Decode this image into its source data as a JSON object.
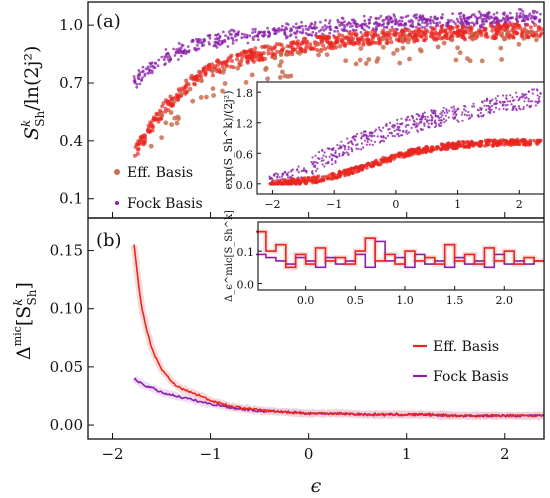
{
  "colors": {
    "eff": "#e8261f",
    "eff_dot": "#c96f4f",
    "fock": "#8a1fa8",
    "fock_light": "#a24fc0",
    "axis": "#111111"
  },
  "chart_data": [
    {
      "panel_label": "(a)",
      "type": "scatter",
      "xlim": [
        -2.25,
        2.4
      ],
      "ylim": [
        0.0,
        1.12
      ],
      "yticks": [
        0.1,
        0.4,
        0.7,
        1.0
      ],
      "ytick_labels": [
        "0.1",
        "0.4",
        "0.7",
        "1.0"
      ],
      "ylabel_text": "S",
      "ylabel_sup": "k",
      "ylabel_sub": "Sh",
      "ylabel_tail": "/ln(2j²)",
      "legend": [
        "Eff. Basis",
        "Fock Basis"
      ],
      "series": [
        {
          "name": "Eff. Basis",
          "x": [
            -1.78,
            -1.7,
            -1.6,
            -1.5,
            -1.4,
            -1.3,
            -1.2,
            -1.1,
            -1.0,
            -0.8,
            -0.6,
            -0.4,
            -0.2,
            0.0,
            0.2,
            0.5,
            0.8,
            1.1,
            1.4,
            1.7,
            2.0,
            2.3
          ],
          "values": [
            0.33,
            0.4,
            0.48,
            0.55,
            0.61,
            0.66,
            0.7,
            0.74,
            0.77,
            0.81,
            0.84,
            0.86,
            0.88,
            0.9,
            0.91,
            0.93,
            0.94,
            0.95,
            0.96,
            0.96,
            0.97,
            0.97
          ]
        },
        {
          "name": "Fock Basis",
          "x": [
            -1.78,
            -1.7,
            -1.6,
            -1.5,
            -1.4,
            -1.3,
            -1.2,
            -1.1,
            -1.0,
            -0.8,
            -0.6,
            -0.4,
            -0.2,
            0.0,
            0.2,
            0.5,
            0.8,
            1.1,
            1.4,
            1.7,
            2.0,
            2.3
          ],
          "values": [
            0.72,
            0.76,
            0.8,
            0.84,
            0.87,
            0.89,
            0.91,
            0.93,
            0.94,
            0.96,
            0.97,
            0.98,
            0.99,
            1.0,
            1.01,
            1.02,
            1.03,
            1.03,
            1.04,
            1.05,
            1.05,
            1.06
          ]
        }
      ]
    },
    {
      "panel_label": "(a) inset",
      "type": "scatter",
      "xlim": [
        -2.25,
        2.4
      ],
      "ylim": [
        -0.2,
        2.0
      ],
      "xticks": [
        -2,
        -1,
        0,
        1,
        2
      ],
      "xtick_labels": [
        "−2",
        "−1",
        "0",
        "1",
        "2"
      ],
      "yticks": [
        0.0,
        0.6,
        1.2,
        1.8
      ],
      "ytick_labels": [
        "0.0",
        "0.6",
        "1.2",
        "1.8"
      ],
      "ylabel": "exp(S_Sh^k)/(2j²)",
      "series": [
        {
          "name": "Eff. Basis",
          "x": [
            -2.0,
            -1.8,
            -1.5,
            -1.2,
            -1.0,
            -0.8,
            -0.6,
            -0.4,
            -0.2,
            0.0,
            0.3,
            0.6,
            0.9,
            1.2,
            1.5,
            1.8,
            2.1,
            2.35
          ],
          "values": [
            0.0,
            0.02,
            0.05,
            0.1,
            0.15,
            0.22,
            0.3,
            0.38,
            0.46,
            0.54,
            0.63,
            0.7,
            0.75,
            0.78,
            0.8,
            0.81,
            0.82,
            0.82
          ]
        },
        {
          "name": "Fock Basis",
          "x": [
            -2.0,
            -1.8,
            -1.5,
            -1.2,
            -1.0,
            -0.8,
            -0.6,
            -0.4,
            -0.2,
            0.0,
            0.3,
            0.6,
            0.9,
            1.2,
            1.5,
            1.8,
            2.1,
            2.35
          ],
          "values": [
            0.02,
            0.06,
            0.2,
            0.5,
            0.55,
            0.72,
            0.82,
            0.92,
            1.0,
            1.08,
            1.18,
            1.28,
            1.36,
            1.44,
            1.52,
            1.58,
            1.65,
            1.72
          ]
        }
      ]
    },
    {
      "panel_label": "(b)",
      "type": "line",
      "xlim": [
        -2.25,
        2.4
      ],
      "ylim": [
        -0.012,
        0.178
      ],
      "xticks": [
        -2,
        -1,
        0,
        1,
        2
      ],
      "xtick_labels": [
        "−2",
        "−1",
        "0",
        "1",
        "2"
      ],
      "yticks": [
        0.0,
        0.05,
        0.1,
        0.15
      ],
      "ytick_labels": [
        "0.00",
        "0.05",
        "0.10",
        "0.15"
      ],
      "xlabel": "ϵ",
      "ylabel_text": "Δ",
      "ylabel_sup": "mic",
      "ylabel_tail_open": "[S",
      "ylabel_inner_sup": "k",
      "ylabel_inner_sub": "Sh",
      "ylabel_tail_close": "]",
      "legend": [
        "Eff. Basis",
        "Fock Basis"
      ],
      "series": [
        {
          "name": "Eff. Basis",
          "x": [
            -1.78,
            -1.74,
            -1.7,
            -1.66,
            -1.62,
            -1.58,
            -1.54,
            -1.5,
            -1.45,
            -1.4,
            -1.35,
            -1.3,
            -1.25,
            -1.2,
            -1.1,
            -1.0,
            -0.9,
            -0.8,
            -0.7,
            -0.6,
            -0.5,
            -0.4,
            -0.2,
            0.0,
            0.3,
            0.6,
            0.9,
            1.2,
            1.5,
            1.8,
            2.1,
            2.4
          ],
          "values": [
            0.155,
            0.125,
            0.1,
            0.085,
            0.072,
            0.062,
            0.055,
            0.048,
            0.043,
            0.038,
            0.034,
            0.031,
            0.03,
            0.028,
            0.025,
            0.021,
            0.019,
            0.016,
            0.015,
            0.014,
            0.013,
            0.012,
            0.011,
            0.01,
            0.01,
            0.009,
            0.009,
            0.009,
            0.008,
            0.008,
            0.008,
            0.008
          ]
        },
        {
          "name": "Fock Basis",
          "x": [
            -1.78,
            -1.7,
            -1.6,
            -1.5,
            -1.4,
            -1.3,
            -1.2,
            -1.1,
            -1.0,
            -0.9,
            -0.8,
            -0.7,
            -0.6,
            -0.5,
            -0.4,
            -0.2,
            0.0,
            0.3,
            0.6,
            0.9,
            1.2,
            1.5,
            1.8,
            2.1,
            2.4
          ],
          "values": [
            0.04,
            0.035,
            0.032,
            0.028,
            0.026,
            0.024,
            0.022,
            0.02,
            0.018,
            0.017,
            0.015,
            0.014,
            0.013,
            0.012,
            0.012,
            0.011,
            0.01,
            0.01,
            0.009,
            0.009,
            0.009,
            0.008,
            0.008,
            0.008,
            0.008
          ]
        }
      ]
    },
    {
      "panel_label": "(b) inset",
      "type": "line",
      "xlim": [
        -0.48,
        2.4
      ],
      "ylim": [
        -0.02,
        0.19
      ],
      "xticks": [
        0.0,
        0.5,
        1.0,
        1.5,
        2.0
      ],
      "xtick_labels": [
        "0.0",
        "0.5",
        "1.0",
        "1.5",
        "2.0"
      ],
      "yticks": [
        0.0,
        0.1
      ],
      "ytick_labels": [
        "0.0",
        "0.1"
      ],
      "ylabel": "Δ_ϵ^mic[S_Sh^k]",
      "series": [
        {
          "name": "Eff. Basis",
          "x": [
            -0.45,
            -0.35,
            -0.25,
            -0.15,
            -0.05,
            0.05,
            0.15,
            0.25,
            0.35,
            0.45,
            0.55,
            0.65,
            0.75,
            0.85,
            0.95,
            1.05,
            1.15,
            1.25,
            1.35,
            1.45,
            1.55,
            1.65,
            1.75,
            1.85,
            1.95,
            2.05,
            2.15,
            2.25,
            2.35
          ],
          "values": [
            0.16,
            0.1,
            0.12,
            0.05,
            0.09,
            0.06,
            0.11,
            0.07,
            0.08,
            0.06,
            0.1,
            0.14,
            0.07,
            0.09,
            0.06,
            0.1,
            0.07,
            0.08,
            0.06,
            0.12,
            0.07,
            0.09,
            0.06,
            0.11,
            0.07,
            0.1,
            0.06,
            0.08,
            0.07
          ]
        },
        {
          "name": "Fock Basis",
          "x": [
            -0.45,
            -0.35,
            -0.25,
            -0.15,
            -0.05,
            0.05,
            0.15,
            0.25,
            0.35,
            0.45,
            0.55,
            0.65,
            0.75,
            0.85,
            0.95,
            1.05,
            1.15,
            1.25,
            1.35,
            1.45,
            1.55,
            1.65,
            1.75,
            1.85,
            1.95,
            2.05,
            2.15,
            2.25,
            2.35
          ],
          "values": [
            0.09,
            0.08,
            0.07,
            0.06,
            0.08,
            0.07,
            0.05,
            0.08,
            0.06,
            0.07,
            0.09,
            0.05,
            0.13,
            0.07,
            0.08,
            0.05,
            0.09,
            0.06,
            0.07,
            0.05,
            0.08,
            0.06,
            0.07,
            0.05,
            0.09,
            0.06,
            0.07,
            0.06,
            0.07
          ]
        }
      ]
    }
  ]
}
